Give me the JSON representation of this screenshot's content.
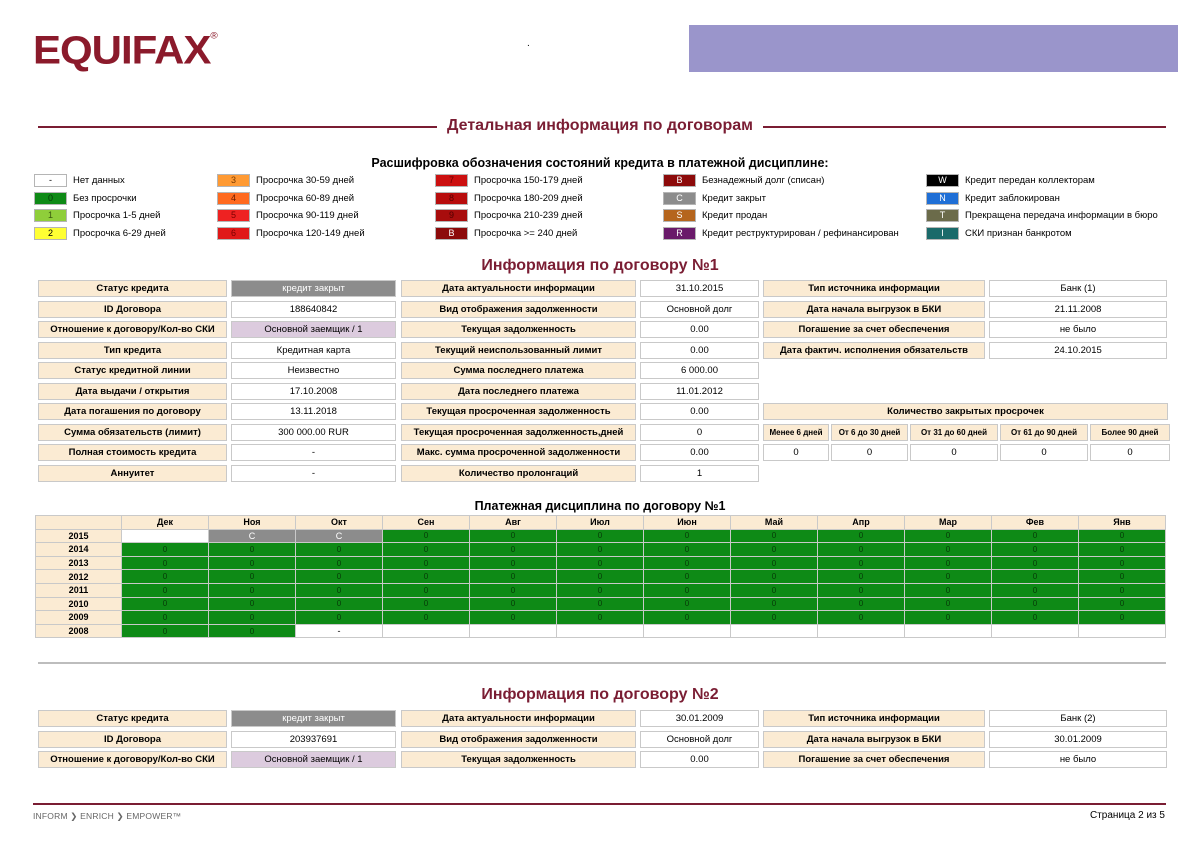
{
  "header": {
    "logo_text": "EQUIFAX",
    "logo_mark": "®",
    "dot": "."
  },
  "section_title": "Детальная информация по договорам",
  "legend": {
    "title": "Расшифровка обозначения состояний кредита в платежной дисциплине:",
    "items": [
      {
        "code": "-",
        "label": "Нет данных",
        "color": "#ffffff",
        "text": "#000000"
      },
      {
        "code": "0",
        "label": "Без просрочки",
        "color": "#0e8a16",
        "text": "#063a08"
      },
      {
        "code": "1",
        "label": "Просрочка 1-5 дней",
        "color": "#8fce3a",
        "text": "#3a5a10"
      },
      {
        "code": "2",
        "label": "Просрочка 6-29 дней",
        "color": "#ffff33",
        "text": "#000000"
      },
      {
        "code": "3",
        "label": "Просрочка 30-59 дней",
        "color": "#ff9a33",
        "text": "#7a3a00"
      },
      {
        "code": "4",
        "label": "Просрочка 60-89 дней",
        "color": "#ff6a1f",
        "text": "#6a1a00"
      },
      {
        "code": "5",
        "label": "Просрочка 90-119 дней",
        "color": "#ee2222",
        "text": "#7a0000"
      },
      {
        "code": "6",
        "label": "Просрочка 120-149 дней",
        "color": "#e01818",
        "text": "#7a0000"
      },
      {
        "code": "7",
        "label": "Просрочка 150-179 дней",
        "color": "#cc1010",
        "text": "#6a0000"
      },
      {
        "code": "8",
        "label": "Просрочка 180-209 дней",
        "color": "#b80d0d",
        "text": "#5a0000"
      },
      {
        "code": "9",
        "label": "Просрочка 210-239 дней",
        "color": "#a80d0d",
        "text": "#500000"
      },
      {
        "code": "B",
        "label": "Просрочка >= 240 дней",
        "color": "#8c0a0a",
        "text": "#ffffff"
      },
      {
        "code": "B",
        "label": "Безнадежный долг (списан)",
        "color": "#8c0a0a",
        "text": "#ffffff"
      },
      {
        "code": "C",
        "label": "Кредит закрыт",
        "color": "#8c8c8c",
        "text": "#ffffff"
      },
      {
        "code": "S",
        "label": "Кредит продан",
        "color": "#b5651d",
        "text": "#ffffff"
      },
      {
        "code": "R",
        "label": "Кредит реструктурирован / рефинансирован",
        "color": "#6a1a6a",
        "text": "#ffffff"
      },
      {
        "code": "W",
        "label": "Кредит передан коллекторам",
        "color": "#000000",
        "text": "#ffffff"
      },
      {
        "code": "N",
        "label": "Кредит заблокирован",
        "color": "#1f6fd6",
        "text": "#ffffff"
      },
      {
        "code": "T",
        "label": "Прекращена передача информации в бюро",
        "color": "#6b6b4a",
        "text": "#ffffff"
      },
      {
        "code": "I",
        "label": "СКИ признан банкротом",
        "color": "#1a6a6a",
        "text": "#ffffff"
      }
    ]
  },
  "contract1": {
    "title": "Информация по договору №1",
    "rows": [
      [
        "Статус кредита",
        "кредит закрыт",
        "Дата актуальности информации",
        "31.10.2015",
        "Тип источника информации",
        "Банк   (1)"
      ],
      [
        "ID Договора",
        "188640842",
        "Вид отображения задолженности",
        "Основной долг",
        "Дата начала выгрузок в БКИ",
        "21.11.2008"
      ],
      [
        "Отношение к договору/Кол-во СКИ",
        "Основной заемщик / 1",
        "Текущая задолженность",
        "0.00",
        "Погашение за счет обеспечения",
        "не было"
      ],
      [
        "Тип кредита",
        "Кредитная карта",
        "Текущий неиспользованный лимит",
        "0.00",
        "Дата фактич. исполнения обязательств",
        "24.10.2015"
      ],
      [
        "Статус кредитной линии",
        "Неизвестно",
        "Сумма последнего платежа",
        "6 000.00"
      ],
      [
        "Дата выдачи / открытия",
        "17.10.2008",
        "Дата последнего платежа",
        "11.01.2012"
      ],
      [
        "Дата погашения по договору",
        "13.11.2018",
        "Текущая просроченная задолженность",
        "0.00",
        "Количество закрытых просрочек"
      ],
      [
        "Сумма обязательств (лимит)",
        "300 000.00  RUR",
        "Текущая просроченная задолженность,дней",
        "0"
      ],
      [
        "Полная стоимость кредита",
        "-",
        "Макс. сумма просроченной задолженности",
        "0.00"
      ],
      [
        "Аннуитет",
        "-",
        "Количество пролонгаций",
        "1"
      ]
    ],
    "overdue_headers": [
      "Менее 6 дней",
      "От 6 до 30 дней",
      "От 31 до 60 дней",
      "От 61 до 90 дней",
      "Более 90 дней"
    ],
    "overdue_values": [
      "0",
      "0",
      "0",
      "0",
      "0"
    ]
  },
  "discipline": {
    "title": "Платежная дисциплина по договору №1",
    "months": [
      "Дек",
      "Ноя",
      "Окт",
      "Сен",
      "Авг",
      "Июл",
      "Июн",
      "Май",
      "Апр",
      "Мар",
      "Фев",
      "Янв"
    ],
    "years": [
      {
        "year": "2015",
        "cells": [
          "",
          "C",
          "C",
          "0",
          "0",
          "0",
          "0",
          "0",
          "0",
          "0",
          "0",
          "0"
        ]
      },
      {
        "year": "2014",
        "cells": [
          "0",
          "0",
          "0",
          "0",
          "0",
          "0",
          "0",
          "0",
          "0",
          "0",
          "0",
          "0"
        ]
      },
      {
        "year": "2013",
        "cells": [
          "0",
          "0",
          "0",
          "0",
          "0",
          "0",
          "0",
          "0",
          "0",
          "0",
          "0",
          "0"
        ]
      },
      {
        "year": "2012",
        "cells": [
          "0",
          "0",
          "0",
          "0",
          "0",
          "0",
          "0",
          "0",
          "0",
          "0",
          "0",
          "0"
        ]
      },
      {
        "year": "2011",
        "cells": [
          "0",
          "0",
          "0",
          "0",
          "0",
          "0",
          "0",
          "0",
          "0",
          "0",
          "0",
          "0"
        ]
      },
      {
        "year": "2010",
        "cells": [
          "0",
          "0",
          "0",
          "0",
          "0",
          "0",
          "0",
          "0",
          "0",
          "0",
          "0",
          "0"
        ]
      },
      {
        "year": "2009",
        "cells": [
          "0",
          "0",
          "0",
          "0",
          "0",
          "0",
          "0",
          "0",
          "0",
          "0",
          "0",
          "0"
        ]
      },
      {
        "year": "2008",
        "cells": [
          "0",
          "0",
          "-",
          "",
          "",
          "",
          "",
          "",
          "",
          "",
          "",
          ""
        ]
      }
    ]
  },
  "contract2": {
    "title": "Информация по договору №2",
    "rows": [
      [
        "Статус кредита",
        "кредит закрыт",
        "Дата актуальности информации",
        "30.01.2009",
        "Тип источника информации",
        "Банк   (2)"
      ],
      [
        "ID Договора",
        "203937691",
        "Вид отображения задолженности",
        "Основной долг",
        "Дата начала выгрузок в БКИ",
        "30.01.2009"
      ],
      [
        "Отношение к договору/Кол-во СКИ",
        "Основной заемщик / 1",
        "Текущая задолженность",
        "0.00",
        "Погашение за счет обеспечения",
        "не было"
      ]
    ]
  },
  "footer": {
    "left": "INFORM ❯ ENRICH ❯ EMPOWER™",
    "page": "Страница 2 из 5"
  }
}
